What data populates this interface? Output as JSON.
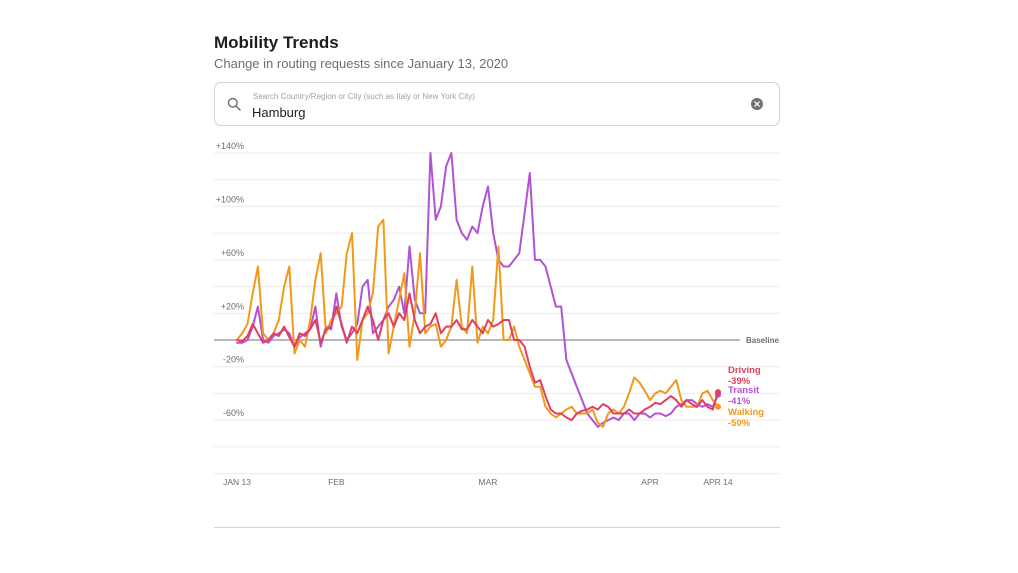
{
  "header": {
    "title": "Mobility Trends",
    "subtitle": "Change in routing requests since January 13, 2020"
  },
  "search": {
    "placeholder": "Search Country/Region or City (such as Italy or New York City)",
    "value": "Hamburg",
    "icon": "search-icon",
    "clear_icon": "clear-icon"
  },
  "chart_data": {
    "type": "line",
    "title": "",
    "xlabel": "",
    "ylabel": "",
    "x_ticks": [
      {
        "label": "JAN 13",
        "day": 0
      },
      {
        "label": "FEB",
        "day": 19
      },
      {
        "label": "MAR",
        "day": 48
      },
      {
        "label": "APR",
        "day": 79
      },
      {
        "label": "APR 14",
        "day": 92
      }
    ],
    "y_ticks": [
      {
        "label": "+140%",
        "value": 140
      },
      {
        "label": "+100%",
        "value": 100
      },
      {
        "label": "+60%",
        "value": 60
      },
      {
        "label": "+20%",
        "value": 20
      },
      {
        "label": "-20%",
        "value": -20
      },
      {
        "label": "-60%",
        "value": -60
      }
    ],
    "ylim": [
      -100,
      140
    ],
    "baseline_label": "Baseline",
    "grid": true,
    "series": [
      {
        "name": "Driving",
        "end_label": "-39%",
        "color": "#e0405e",
        "values": [
          0,
          -1,
          3,
          12,
          5,
          -2,
          0,
          5,
          3,
          10,
          2,
          -5,
          5,
          3,
          8,
          15,
          -2,
          8,
          10,
          25,
          12,
          -2,
          10,
          5,
          15,
          25,
          15,
          0,
          15,
          20,
          10,
          20,
          15,
          35,
          15,
          5,
          10,
          12,
          20,
          5,
          10,
          10,
          15,
          8,
          8,
          15,
          10,
          5,
          15,
          10,
          12,
          15,
          15,
          0,
          0,
          -5,
          -20,
          -32,
          -30,
          -42,
          -52,
          -55,
          -55,
          -58,
          -60,
          -55,
          -53,
          -52,
          -50,
          -52,
          -48,
          -50,
          -55,
          -55,
          -55,
          -52,
          -55,
          -55,
          -52,
          -50,
          -47,
          -48,
          -45,
          -42,
          -45,
          -50,
          -45,
          -48,
          -50,
          -45,
          -50,
          -52,
          -39
        ]
      },
      {
        "name": "Transit",
        "end_label": "-41%",
        "color": "#b252d6",
        "values": [
          -2,
          -2,
          0,
          10,
          25,
          0,
          -2,
          3,
          5,
          8,
          5,
          -5,
          2,
          5,
          8,
          25,
          -5,
          10,
          8,
          35,
          10,
          0,
          5,
          12,
          40,
          45,
          5,
          10,
          15,
          25,
          30,
          40,
          20,
          70,
          30,
          20,
          20,
          140,
          90,
          100,
          130,
          140,
          90,
          80,
          75,
          85,
          80,
          100,
          115,
          80,
          60,
          55,
          55,
          60,
          65,
          95,
          125,
          60,
          60,
          55,
          40,
          25,
          25,
          -15,
          -25,
          -35,
          -45,
          -55,
          -60,
          -65,
          -62,
          -60,
          -58,
          -60,
          -55,
          -55,
          -60,
          -55,
          -55,
          -58,
          -55,
          -55,
          -57,
          -55,
          -50,
          -48,
          -45,
          -45,
          -48,
          -50,
          -48,
          -50,
          -41
        ]
      },
      {
        "name": "Walking",
        "end_label": "-50%",
        "color": "#f0991d",
        "values": [
          0,
          5,
          12,
          35,
          55,
          5,
          0,
          5,
          15,
          40,
          55,
          -10,
          0,
          -5,
          15,
          45,
          65,
          5,
          15,
          20,
          25,
          65,
          80,
          -15,
          15,
          20,
          35,
          85,
          90,
          -10,
          10,
          30,
          50,
          -5,
          20,
          65,
          5,
          10,
          12,
          -5,
          0,
          10,
          45,
          10,
          5,
          55,
          -2,
          10,
          5,
          15,
          70,
          0,
          0,
          10,
          -5,
          -15,
          -25,
          -35,
          -35,
          -50,
          -55,
          -58,
          -55,
          -52,
          -50,
          -55,
          -55,
          -55,
          -52,
          -62,
          -65,
          -55,
          -52,
          -55,
          -50,
          -40,
          -28,
          -32,
          -38,
          -45,
          -40,
          -38,
          -40,
          -35,
          -30,
          -45,
          -50,
          -50,
          -50,
          -40,
          -38,
          -45,
          -50
        ]
      }
    ]
  }
}
